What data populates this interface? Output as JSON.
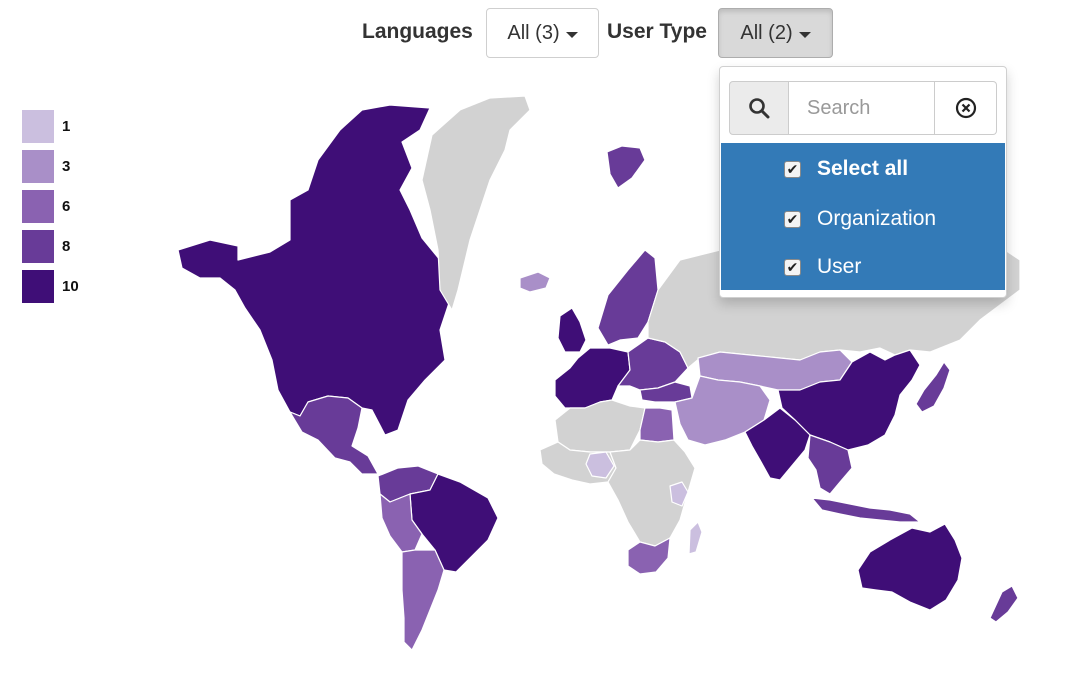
{
  "filters": {
    "languages": {
      "label": "Languages",
      "value": "All (3)"
    },
    "user_type": {
      "label": "User Type",
      "value": "All (2)"
    }
  },
  "legend": {
    "items": [
      {
        "label": "1",
        "color": "#cbbfdf"
      },
      {
        "label": "3",
        "color": "#a98fc8"
      },
      {
        "label": "6",
        "color": "#8a62b1"
      },
      {
        "label": "8",
        "color": "#683b98"
      },
      {
        "label": "10",
        "color": "#3f0e77"
      }
    ]
  },
  "dropdown": {
    "search_placeholder": "Search",
    "search_value": "",
    "options": [
      {
        "label": "Select all",
        "checked": true,
        "bold": true
      },
      {
        "label": "Organization",
        "checked": true,
        "bold": false
      },
      {
        "label": "User",
        "checked": true,
        "bold": false
      }
    ]
  },
  "map": {
    "no_data_color": "#d2d2d2",
    "regions": [
      {
        "id": "north-america",
        "value": 10
      },
      {
        "id": "central-america",
        "value": 8
      },
      {
        "id": "greenland",
        "value": 0
      },
      {
        "id": "svalbard",
        "value": 8
      },
      {
        "id": "iceland",
        "value": 3
      },
      {
        "id": "united-kingdom",
        "value": 10
      },
      {
        "id": "scandinavia",
        "value": 8
      },
      {
        "id": "western-europe",
        "value": 10
      },
      {
        "id": "eastern-europe",
        "value": 8
      },
      {
        "id": "russia",
        "value": 0
      },
      {
        "id": "turkey",
        "value": 8
      },
      {
        "id": "kazakhstan",
        "value": 3
      },
      {
        "id": "middle-east",
        "value": 3
      },
      {
        "id": "china",
        "value": 10
      },
      {
        "id": "india",
        "value": 10
      },
      {
        "id": "japan",
        "value": 8
      },
      {
        "id": "southeast-asia",
        "value": 8
      },
      {
        "id": "indonesia",
        "value": 8
      },
      {
        "id": "australia",
        "value": 10
      },
      {
        "id": "new-zealand",
        "value": 8
      },
      {
        "id": "north-africa",
        "value": 0
      },
      {
        "id": "egypt",
        "value": 6
      },
      {
        "id": "west-africa",
        "value": 0
      },
      {
        "id": "nigeria",
        "value": 1
      },
      {
        "id": "central-africa",
        "value": 0
      },
      {
        "id": "east-africa",
        "value": 1
      },
      {
        "id": "south-africa",
        "value": 6
      },
      {
        "id": "madagascar",
        "value": 1
      },
      {
        "id": "brazil",
        "value": 10
      },
      {
        "id": "andes",
        "value": 6
      },
      {
        "id": "northern-south-america",
        "value": 8
      },
      {
        "id": "argentina",
        "value": 6
      }
    ]
  }
}
